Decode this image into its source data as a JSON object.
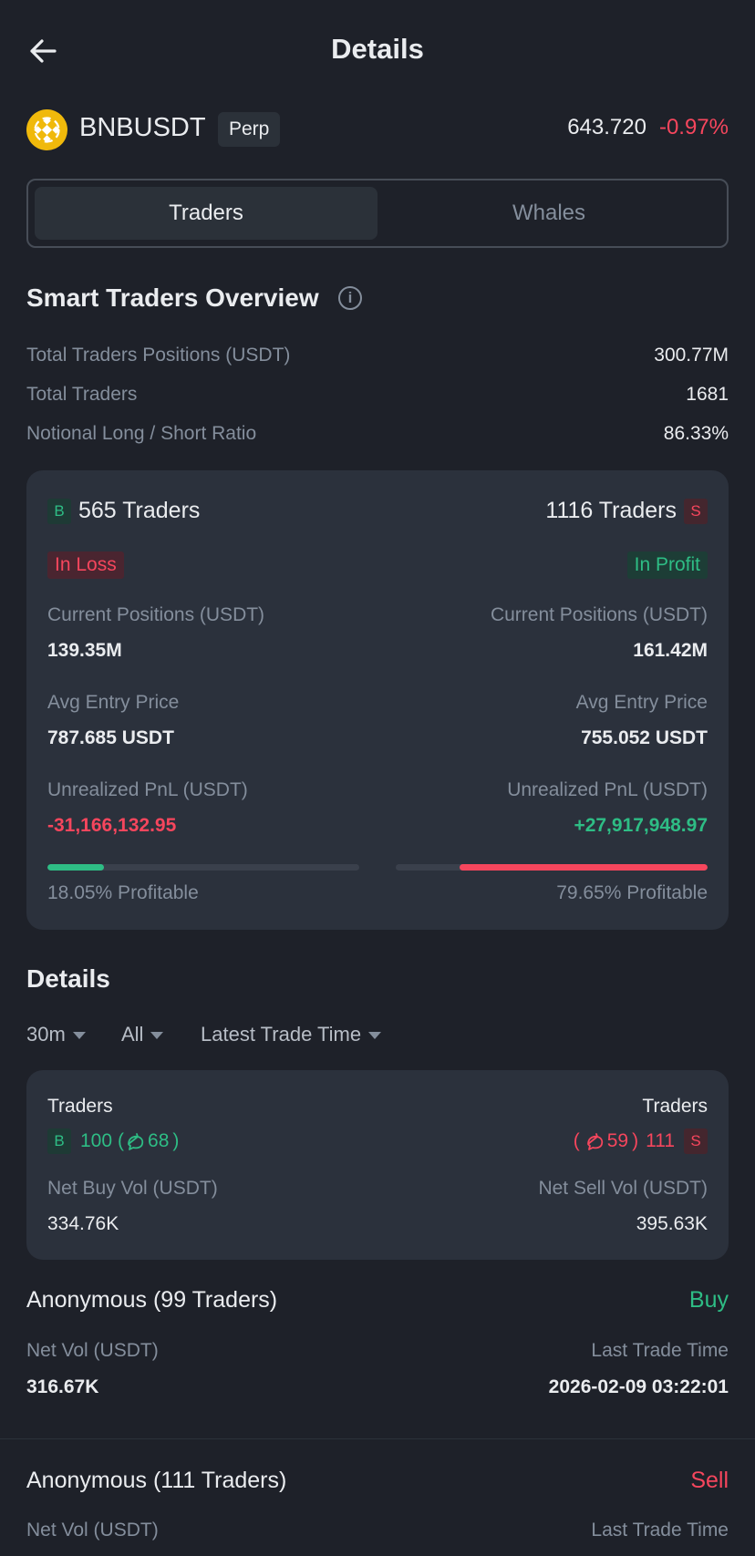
{
  "header": {
    "title": "Details",
    "back_icon": "arrow-left-icon"
  },
  "symbol": {
    "name": "BNBUSDT",
    "type": "Perp",
    "last_price": "643.720",
    "change": "-0.97%",
    "coin_icon": "bnb-coin-icon"
  },
  "tabs": [
    {
      "label": "Traders",
      "active": true
    },
    {
      "label": "Whales",
      "active": false
    }
  ],
  "overview": {
    "title": "Smart Traders Overview",
    "rows": [
      {
        "label": "Total Traders Positions (USDT)",
        "value": "300.77M"
      },
      {
        "label": "Total Traders",
        "value": "1681"
      },
      {
        "label": "Notional Long / Short Ratio",
        "value": "86.33%"
      }
    ]
  },
  "long_short": {
    "long": {
      "badge": "B",
      "traders": "565 Traders",
      "status": "In Loss",
      "positions_label": "Current Positions (USDT)",
      "positions": "139.35M",
      "entry_label": "Avg Entry Price",
      "entry": "787.685 USDT",
      "pnl_label": "Unrealized PnL (USDT)",
      "pnl": "-31,166,132.95",
      "profitable": "18.05% Profitable",
      "profitable_fraction": 0.1805
    },
    "short": {
      "badge": "S",
      "traders": "1116 Traders",
      "status": "In Profit",
      "positions_label": "Current Positions (USDT)",
      "positions": "161.42M",
      "entry_label": "Avg Entry Price",
      "entry": "755.052 USDT",
      "pnl_label": "Unrealized PnL (USDT)",
      "pnl": "+27,917,948.97",
      "profitable": "79.65% Profitable",
      "profitable_fraction": 0.7965
    }
  },
  "details": {
    "title": "Details",
    "filters": [
      {
        "label": "30m"
      },
      {
        "label": "All"
      },
      {
        "label": "Latest Trade Time"
      }
    ],
    "summary": {
      "buy": {
        "label": "Traders",
        "badge": "B",
        "count": "100",
        "sub_open": "(",
        "sub_count": "68",
        "sub_close": ")",
        "vol_label": "Net Buy Vol (USDT)",
        "vol": "334.76K"
      },
      "sell": {
        "label": "Traders",
        "badge": "S",
        "count": "111",
        "sub_open": "(",
        "sub_count": "59",
        "sub_close": ")",
        "vol_label": "Net Sell Vol (USDT)",
        "vol": "395.63K"
      }
    },
    "rows": [
      {
        "title": "Anonymous (99 Traders)",
        "side": "Buy",
        "vol_label": "Net Vol (USDT)",
        "vol": "316.67K",
        "time_label": "Last Trade Time",
        "time": "2026-02-09 03:22:01"
      },
      {
        "title": "Anonymous (111 Traders)",
        "side": "Sell",
        "vol_label": "Net Vol (USDT)",
        "time_label": "Last Trade Time"
      }
    ]
  }
}
